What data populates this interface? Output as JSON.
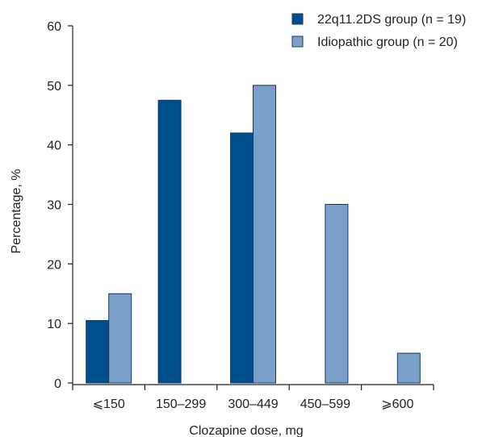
{
  "chart_data": {
    "type": "bar",
    "title": "",
    "xlabel": "Clozapine dose, mg",
    "ylabel": "Percentage, %",
    "categories": [
      "⩽150",
      "150–299",
      "300–449",
      "450–599",
      "⩾600"
    ],
    "ylim": [
      0,
      60
    ],
    "yticks": [
      0,
      10,
      20,
      30,
      40,
      50,
      60
    ],
    "grid": false,
    "legend_position": "top-right",
    "series": [
      {
        "name": "22q11.2DS group",
        "name_n": "(n = 19)",
        "color": "#004f8c",
        "values": [
          10.5,
          47.5,
          42,
          0,
          0
        ]
      },
      {
        "name": "Idiopathic group",
        "name_n": "(n = 20)",
        "color": "#7a9fc9",
        "values": [
          15,
          0,
          50,
          30,
          5
        ]
      }
    ]
  }
}
